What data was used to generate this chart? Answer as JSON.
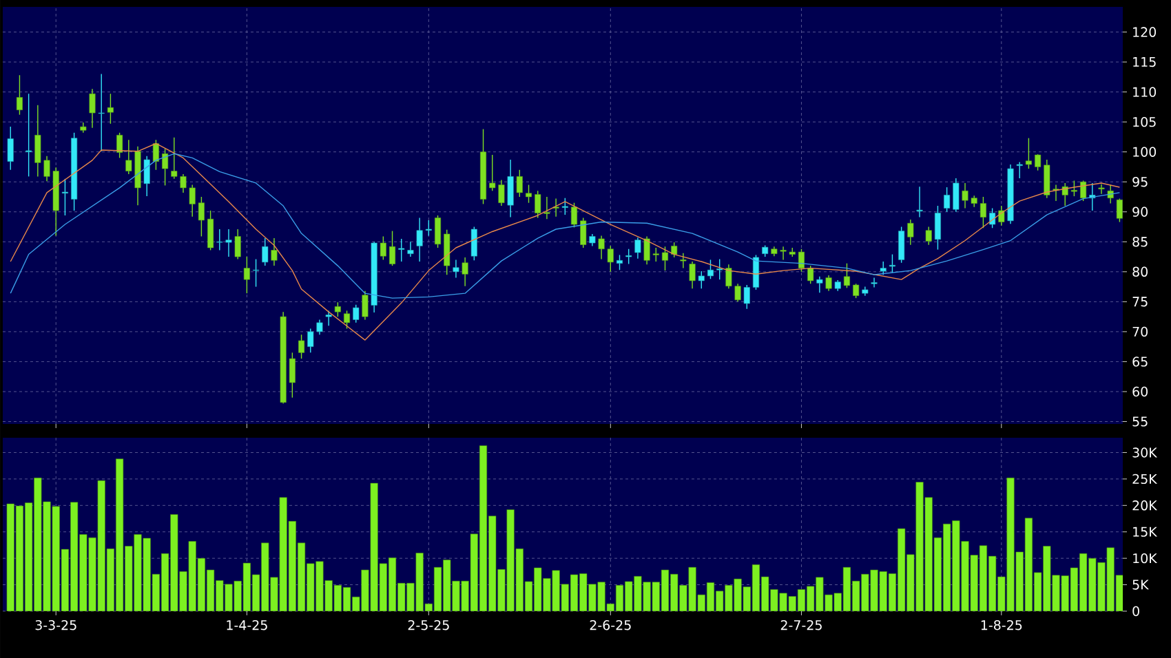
{
  "chart_data": [
    {
      "type": "candlestick",
      "categories": [
        null,
        null,
        null,
        null,
        null,
        null,
        null,
        null,
        null,
        null,
        null,
        null,
        null,
        null,
        null,
        null,
        null,
        null,
        null,
        null,
        null,
        null,
        null,
        null,
        null,
        null,
        null,
        null,
        null,
        null,
        null,
        null,
        null,
        null,
        null,
        null,
        null,
        null,
        null,
        null,
        null,
        null,
        null,
        null,
        null,
        null,
        null,
        null,
        null,
        null,
        null,
        null,
        null,
        null,
        null,
        null,
        null,
        null,
        null,
        null,
        null,
        null,
        null,
        null,
        null,
        null,
        null,
        null,
        null,
        null,
        null,
        null,
        null,
        null,
        null,
        null,
        null,
        null,
        null,
        null,
        null,
        null,
        null,
        null,
        null,
        null,
        null,
        null,
        null,
        null,
        null,
        null,
        null,
        null,
        null,
        null,
        null,
        null,
        null,
        null,
        null,
        null,
        null,
        null,
        null,
        null,
        null,
        null,
        null,
        null,
        null,
        null,
        null,
        null,
        null,
        null,
        null,
        null,
        null,
        null,
        null,
        null,
        null
      ],
      "ohlc": [
        [
          98.4,
          104.2,
          97.0,
          102.2
        ],
        [
          109.1,
          112.8,
          106.2,
          107.0
        ],
        [
          100.0,
          109.7,
          95.9,
          100.2
        ],
        [
          102.8,
          107.8,
          95.9,
          98.2
        ],
        [
          98.6,
          99.3,
          95.1,
          95.9
        ],
        [
          96.8,
          97.4,
          86.0,
          90.2
        ],
        [
          93.1,
          95.5,
          89.4,
          93.3
        ],
        [
          92.1,
          103.2,
          90.2,
          102.3
        ],
        [
          104.2,
          104.9,
          103.2,
          103.6
        ],
        [
          109.7,
          110.5,
          104.0,
          106.5
        ],
        [
          106.4,
          113.0,
          100.1,
          106.5
        ],
        [
          107.4,
          109.7,
          104.7,
          106.6
        ],
        [
          102.8,
          103.2,
          99.0,
          99.9
        ],
        [
          98.6,
          102.0,
          96.3,
          96.8
        ],
        [
          100.1,
          100.9,
          91.1,
          94.0
        ],
        [
          94.7,
          99.3,
          92.6,
          98.7
        ],
        [
          101.4,
          102.0,
          97.0,
          98.4
        ],
        [
          99.7,
          100.5,
          94.4,
          97.2
        ],
        [
          96.8,
          102.4,
          95.5,
          95.9
        ],
        [
          95.9,
          96.3,
          93.2,
          94.0
        ],
        [
          94.0,
          94.5,
          89.2,
          91.3
        ],
        [
          91.5,
          92.5,
          85.9,
          88.6
        ],
        [
          88.8,
          90.2,
          83.6,
          84.0
        ],
        [
          84.9,
          87.1,
          83.6,
          85.0
        ],
        [
          84.9,
          87.1,
          82.5,
          85.3
        ],
        [
          85.9,
          87.1,
          82.1,
          82.5
        ],
        [
          80.6,
          82.5,
          76.4,
          78.7
        ],
        [
          80.2,
          82.1,
          77.5,
          80.3
        ],
        [
          81.6,
          85.6,
          81.0,
          84.2
        ],
        [
          83.6,
          85.6,
          81.0,
          81.9
        ],
        [
          72.5,
          73.3,
          58.0,
          58.2
        ],
        [
          65.5,
          66.5,
          59.0,
          61.5
        ],
        [
          68.5,
          69.5,
          65.5,
          66.5
        ],
        [
          67.5,
          70.5,
          66.5,
          70.0
        ],
        [
          70.0,
          72.0,
          69.5,
          71.5
        ],
        [
          72.5,
          73.5,
          71.0,
          72.8
        ],
        [
          74.2,
          74.9,
          72.5,
          73.3
        ],
        [
          73.0,
          73.5,
          70.5,
          71.5
        ],
        [
          72.0,
          74.5,
          71.5,
          74.0
        ],
        [
          76.1,
          76.8,
          72.0,
          72.5
        ],
        [
          74.4,
          85.0,
          73.2,
          84.8
        ],
        [
          84.8,
          85.9,
          82.0,
          82.6
        ],
        [
          84.2,
          86.8,
          81.0,
          81.3
        ],
        [
          83.7,
          85.5,
          81.7,
          83.9
        ],
        [
          83.0,
          85.0,
          82.5,
          83.6
        ],
        [
          84.3,
          89.0,
          81.7,
          86.9
        ],
        [
          86.9,
          88.6,
          86.0,
          87.1
        ],
        [
          89.0,
          89.4,
          84.0,
          84.6
        ],
        [
          86.3,
          87.0,
          79.5,
          81.0
        ],
        [
          80.0,
          82.0,
          79.0,
          80.7
        ],
        [
          81.5,
          82.4,
          77.6,
          79.6
        ],
        [
          82.6,
          87.5,
          81.9,
          87.1
        ],
        [
          100.0,
          103.8,
          91.3,
          92.1
        ],
        [
          94.8,
          99.5,
          93.5,
          94.0
        ],
        [
          94.5,
          95.3,
          91.0,
          91.5
        ],
        [
          91.1,
          98.7,
          89.1,
          95.9
        ],
        [
          95.9,
          97.0,
          92.5,
          93.2
        ],
        [
          93.1,
          94.5,
          91.5,
          92.5
        ],
        [
          92.9,
          93.5,
          89.0,
          89.8
        ],
        [
          89.9,
          92.5,
          88.8,
          89.7
        ],
        [
          90.8,
          92.2,
          89.2,
          90.6
        ],
        [
          90.7,
          92.3,
          89.5,
          90.9
        ],
        [
          90.8,
          91.5,
          87.4,
          87.9
        ],
        [
          88.5,
          89.0,
          84.0,
          84.5
        ],
        [
          84.8,
          86.3,
          84.3,
          85.9
        ],
        [
          85.5,
          86.0,
          82.1,
          83.8
        ],
        [
          83.8,
          84.3,
          80.0,
          81.6
        ],
        [
          81.4,
          82.8,
          80.3,
          81.9
        ],
        [
          82.5,
          83.8,
          81.3,
          82.7
        ],
        [
          83.2,
          85.7,
          82.2,
          85.3
        ],
        [
          85.5,
          85.9,
          81.2,
          81.9
        ],
        [
          83.0,
          84.0,
          81.7,
          82.8
        ],
        [
          83.2,
          84.2,
          80.2,
          81.9
        ],
        [
          84.3,
          84.9,
          82.4,
          82.9
        ],
        [
          82.0,
          83.1,
          80.6,
          81.8
        ],
        [
          81.3,
          81.7,
          77.2,
          78.5
        ],
        [
          78.5,
          80.1,
          77.2,
          79.3
        ],
        [
          79.3,
          82.0,
          78.8,
          80.3
        ],
        [
          80.3,
          82.1,
          78.7,
          80.5
        ],
        [
          80.6,
          81.2,
          77.2,
          77.6
        ],
        [
          77.6,
          78.0,
          75.0,
          75.3
        ],
        [
          74.7,
          77.8,
          73.8,
          77.4
        ],
        [
          77.4,
          82.8,
          77.0,
          82.4
        ],
        [
          83.0,
          84.4,
          82.5,
          84.1
        ],
        [
          83.8,
          84.2,
          82.6,
          83.0
        ],
        [
          83.6,
          84.2,
          82.0,
          83.4
        ],
        [
          83.3,
          84.0,
          82.5,
          82.9
        ],
        [
          83.3,
          83.8,
          80.0,
          80.6
        ],
        [
          80.6,
          81.0,
          78.0,
          78.5
        ],
        [
          78.1,
          79.2,
          76.5,
          78.7
        ],
        [
          79.0,
          79.4,
          76.8,
          77.2
        ],
        [
          77.2,
          78.6,
          76.8,
          78.3
        ],
        [
          79.2,
          81.4,
          77.3,
          77.7
        ],
        [
          77.8,
          78.0,
          75.6,
          76.0
        ],
        [
          76.4,
          77.5,
          76.0,
          77.0
        ],
        [
          78.0,
          79.0,
          77.4,
          78.2
        ],
        [
          80.1,
          81.7,
          79.5,
          80.6
        ],
        [
          80.9,
          82.9,
          79.8,
          81.1
        ],
        [
          82.0,
          87.5,
          81.5,
          86.8
        ],
        [
          88.1,
          88.7,
          84.5,
          85.8
        ],
        [
          90.1,
          94.2,
          89.1,
          90.3
        ],
        [
          86.9,
          87.5,
          84.5,
          85.1
        ],
        [
          85.4,
          91.0,
          83.7,
          89.8
        ],
        [
          90.6,
          94.1,
          90.0,
          92.8
        ],
        [
          90.4,
          95.6,
          90.0,
          94.8
        ],
        [
          93.5,
          94.8,
          90.6,
          91.9
        ],
        [
          92.3,
          92.7,
          90.8,
          91.4
        ],
        [
          91.4,
          92.5,
          87.3,
          89.1
        ],
        [
          87.9,
          90.6,
          87.3,
          89.8
        ],
        [
          90.2,
          91.0,
          87.7,
          88.3
        ],
        [
          88.5,
          97.9,
          88.0,
          97.2
        ],
        [
          97.7,
          98.3,
          95.6,
          97.9
        ],
        [
          98.5,
          102.3,
          97.2,
          97.9
        ],
        [
          99.5,
          99.6,
          96.9,
          97.5
        ],
        [
          97.8,
          98.7,
          92.3,
          92.8
        ],
        [
          93.8,
          94.5,
          91.8,
          93.6
        ],
        [
          94.2,
          94.8,
          91.0,
          92.8
        ],
        [
          93.6,
          95.2,
          92.6,
          93.4
        ],
        [
          95.0,
          95.2,
          91.8,
          92.3
        ],
        [
          92.3,
          94.8,
          90.2,
          92.8
        ],
        [
          94.0,
          94.6,
          93.0,
          93.8
        ],
        [
          93.5,
          94.5,
          91.4,
          92.3
        ],
        [
          92.0,
          92.2,
          88.3,
          88.9
        ]
      ],
      "series": [
        {
          "type": "line",
          "color": "#e8884a",
          "values": [
            81.7,
            null,
            null,
            null,
            93.2,
            null,
            null,
            null,
            null,
            98.6,
            100.3,
            null,
            null,
            null,
            100.1,
            null,
            101.4,
            null,
            null,
            99.0,
            null,
            null,
            null,
            null,
            91.7,
            null,
            null,
            87.1,
            null,
            84.4,
            null,
            80.2,
            77.1,
            null,
            null,
            73.3,
            null,
            null,
            null,
            68.6,
            null,
            null,
            null,
            74.8,
            null,
            null,
            80.2,
            null,
            null,
            84.0,
            null,
            null,
            null,
            86.7,
            null,
            null,
            null,
            null,
            89.4,
            null,
            null,
            91.7,
            null,
            null,
            null,
            null,
            87.9,
            null,
            null,
            null,
            85.2,
            null,
            null,
            82.9,
            null,
            null,
            81.7,
            null,
            null,
            80.2,
            null,
            null,
            79.6,
            null,
            null,
            80.2,
            null,
            null,
            80.6,
            null,
            null,
            null,
            null,
            80.1,
            null,
            null,
            null,
            null,
            78.7,
            null,
            80.6,
            null,
            82.2,
            null,
            null,
            85.2,
            null,
            null,
            null,
            89.8,
            null,
            91.8,
            null,
            null,
            93.3,
            null,
            null,
            94.1,
            null,
            null,
            94.8,
            null,
            94.1
          ]
        },
        {
          "type": "line",
          "color": "#3a9ee8",
          "values": [
            76.4,
            null,
            82.9,
            null,
            null,
            null,
            87.9,
            null,
            null,
            null,
            null,
            null,
            94.0,
            null,
            null,
            null,
            98.6,
            null,
            99.7,
            null,
            99.0,
            null,
            null,
            96.7,
            null,
            null,
            null,
            94.8,
            null,
            null,
            91.0,
            null,
            86.4,
            null,
            null,
            null,
            81.0,
            null,
            null,
            76.4,
            null,
            null,
            75.6,
            null,
            null,
            null,
            75.8,
            null,
            null,
            null,
            76.4,
            null,
            null,
            null,
            81.8,
            null,
            null,
            null,
            85.6,
            null,
            87.1,
            null,
            null,
            null,
            null,
            88.3,
            null,
            null,
            null,
            null,
            88.1,
            null,
            null,
            null,
            null,
            86.4,
            null,
            null,
            null,
            null,
            83.3,
            null,
            81.8,
            null,
            null,
            null,
            null,
            81.4,
            null,
            null,
            null,
            null,
            80.6,
            null,
            null,
            79.5,
            null,
            null,
            null,
            80.2,
            null,
            null,
            null,
            81.8,
            null,
            null,
            null,
            83.7,
            null,
            null,
            85.2,
            null,
            null,
            null,
            89.5,
            null,
            null,
            null,
            92.2,
            null,
            92.7,
            null,
            93.2
          ]
        }
      ],
      "ylim": [
        54.6,
        124.2
      ],
      "yticks": [
        55,
        60,
        65,
        70,
        75,
        80,
        85,
        90,
        95,
        100,
        105,
        110,
        115,
        120
      ],
      "grid": true,
      "tick_labels": "y"
    },
    {
      "type": "bar",
      "categories": [
        null,
        null,
        null,
        null,
        null,
        "3-3-25",
        null,
        null,
        null,
        null,
        null,
        null,
        null,
        null,
        null,
        null,
        null,
        null,
        null,
        null,
        null,
        null,
        null,
        null,
        null,
        null,
        "1-4-25",
        null,
        null,
        null,
        null,
        null,
        null,
        null,
        null,
        null,
        null,
        null,
        null,
        null,
        null,
        null,
        null,
        null,
        null,
        null,
        "2-5-25",
        null,
        null,
        null,
        null,
        null,
        null,
        null,
        null,
        null,
        null,
        null,
        null,
        null,
        null,
        null,
        null,
        null,
        null,
        null,
        "2-6-25",
        null,
        null,
        null,
        null,
        null,
        null,
        null,
        null,
        null,
        null,
        null,
        null,
        null,
        null,
        null,
        null,
        null,
        null,
        null,
        null,
        "2-7-25",
        null,
        null,
        null,
        null,
        null,
        null,
        null,
        null,
        null,
        null,
        null,
        null,
        null,
        null,
        null,
        null,
        null,
        null,
        null,
        null,
        null,
        "1-8-25",
        null,
        null,
        null,
        null,
        null,
        null,
        null,
        null,
        null,
        null,
        null,
        null,
        null
      ],
      "values": [
        20300,
        19900,
        20500,
        25200,
        20700,
        19800,
        11700,
        20600,
        14500,
        13900,
        24700,
        11800,
        28800,
        12300,
        14500,
        13800,
        7000,
        10900,
        18300,
        7500,
        13200,
        10000,
        7800,
        5800,
        5100,
        5700,
        9100,
        6900,
        12900,
        6400,
        21500,
        17000,
        12900,
        9000,
        9400,
        5800,
        4900,
        4500,
        2700,
        7800,
        24200,
        9000,
        10100,
        5300,
        5300,
        11000,
        1400,
        8300,
        9700,
        5700,
        5700,
        14600,
        31300,
        18000,
        7900,
        19200,
        11800,
        5600,
        8200,
        6200,
        7700,
        5100,
        6900,
        7100,
        5100,
        5500,
        1400,
        4900,
        5600,
        6600,
        5500,
        5500,
        7800,
        7000,
        4900,
        8300,
        3100,
        5400,
        3800,
        4900,
        6100,
        4600,
        8800,
        6500,
        4100,
        3400,
        2800,
        4100,
        4700,
        6400,
        3100,
        3400,
        8300,
        5700,
        7000,
        7800,
        7500,
        7100,
        15600,
        10700,
        24400,
        21500,
        13900,
        16500,
        17100,
        13200,
        10600,
        12400,
        10400,
        6500,
        25200,
        11200,
        17600,
        7300,
        12300,
        6800,
        6700,
        8200,
        10900,
        10000,
        9200,
        12000,
        6800
      ],
      "color": "#7df021",
      "ylim": [
        0,
        32800
      ],
      "yticks": [
        0,
        {
          "value": 5000,
          "label": "5K"
        },
        {
          "value": 10000,
          "label": "10K"
        },
        {
          "value": 15000,
          "label": "15K"
        },
        {
          "value": 20000,
          "label": "20K"
        },
        {
          "value": 25000,
          "label": "25K"
        },
        {
          "value": 30000,
          "label": "30K"
        }
      ],
      "grid": true
    }
  ]
}
